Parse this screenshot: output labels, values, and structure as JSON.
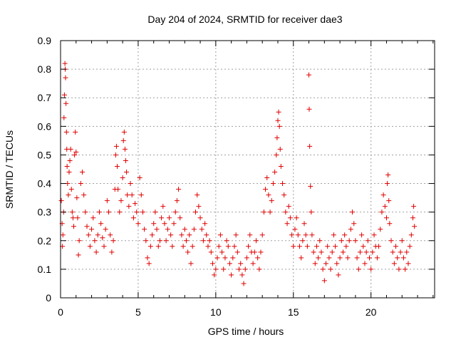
{
  "chart_data": {
    "type": "scatter",
    "title": "Day 204 of 2024, SRMTID for receiver dae3",
    "xlabel": "GPS time / hours",
    "ylabel": "SRMTID / TECUs",
    "xlim": [
      0,
      24.1
    ],
    "ylim": [
      0,
      0.9
    ],
    "x_ticks": [
      0,
      5,
      10,
      15,
      20
    ],
    "y_ticks": [
      0,
      0.1,
      0.2,
      0.3,
      0.4,
      0.5,
      0.6,
      0.7,
      0.8,
      0.9
    ],
    "x_tick_labels": [
      "0",
      "5",
      "10",
      "15",
      "20"
    ],
    "y_tick_labels": [
      "0",
      "0.1",
      "0.2",
      "0.3",
      "0.4",
      "0.5",
      "0.6",
      "0.7",
      "0.8",
      "0.9"
    ],
    "grid": true,
    "marker": "+",
    "marker_color": "#e00000",
    "series": [
      {
        "name": "SRMTID",
        "points": [
          [
            0.05,
            0.34
          ],
          [
            0.1,
            0.26
          ],
          [
            0.12,
            0.18
          ],
          [
            0.15,
            0.22
          ],
          [
            0.2,
            0.3
          ],
          [
            0.22,
            0.63
          ],
          [
            0.25,
            0.71
          ],
          [
            0.28,
            0.82
          ],
          [
            0.3,
            0.8
          ],
          [
            0.32,
            0.77
          ],
          [
            0.35,
            0.68
          ],
          [
            0.38,
            0.58
          ],
          [
            0.4,
            0.52
          ],
          [
            0.42,
            0.46
          ],
          [
            0.45,
            0.4
          ],
          [
            0.5,
            0.36
          ],
          [
            0.55,
            0.44
          ],
          [
            0.6,
            0.48
          ],
          [
            0.65,
            0.52
          ],
          [
            0.7,
            0.38
          ],
          [
            0.75,
            0.3
          ],
          [
            0.8,
            0.28
          ],
          [
            0.85,
            0.25
          ],
          [
            0.9,
            0.5
          ],
          [
            0.95,
            0.58
          ],
          [
            1.0,
            0.51
          ],
          [
            1.05,
            0.35
          ],
          [
            1.1,
            0.28
          ],
          [
            1.15,
            0.15
          ],
          [
            1.2,
            0.2
          ],
          [
            1.3,
            0.4
          ],
          [
            1.4,
            0.44
          ],
          [
            1.5,
            0.36
          ],
          [
            1.6,
            0.3
          ],
          [
            1.7,
            0.25
          ],
          [
            1.8,
            0.22
          ],
          [
            1.9,
            0.18
          ],
          [
            2.0,
            0.24
          ],
          [
            2.1,
            0.28
          ],
          [
            2.2,
            0.2
          ],
          [
            2.3,
            0.16
          ],
          [
            2.4,
            0.22
          ],
          [
            2.5,
            0.3
          ],
          [
            2.6,
            0.26
          ],
          [
            2.7,
            0.21
          ],
          [
            2.8,
            0.18
          ],
          [
            2.9,
            0.24
          ],
          [
            3.0,
            0.34
          ],
          [
            3.1,
            0.3
          ],
          [
            3.2,
            0.22
          ],
          [
            3.3,
            0.16
          ],
          [
            3.4,
            0.2
          ],
          [
            3.5,
            0.38
          ],
          [
            3.55,
            0.5
          ],
          [
            3.6,
            0.53
          ],
          [
            3.65,
            0.46
          ],
          [
            3.7,
            0.38
          ],
          [
            3.8,
            0.3
          ],
          [
            3.9,
            0.34
          ],
          [
            4.0,
            0.42
          ],
          [
            4.05,
            0.55
          ],
          [
            4.1,
            0.58
          ],
          [
            4.15,
            0.52
          ],
          [
            4.2,
            0.48
          ],
          [
            4.25,
            0.44
          ],
          [
            4.3,
            0.36
          ],
          [
            4.4,
            0.32
          ],
          [
            4.5,
            0.4
          ],
          [
            4.6,
            0.36
          ],
          [
            4.7,
            0.28
          ],
          [
            4.8,
            0.33
          ],
          [
            4.9,
            0.3
          ],
          [
            5.0,
            0.26
          ],
          [
            5.1,
            0.42
          ],
          [
            5.2,
            0.36
          ],
          [
            5.3,
            0.3
          ],
          [
            5.4,
            0.24
          ],
          [
            5.5,
            0.2
          ],
          [
            5.6,
            0.14
          ],
          [
            5.7,
            0.12
          ],
          [
            5.8,
            0.18
          ],
          [
            5.9,
            0.22
          ],
          [
            6.0,
            0.26
          ],
          [
            6.1,
            0.3
          ],
          [
            6.2,
            0.24
          ],
          [
            6.3,
            0.18
          ],
          [
            6.4,
            0.2
          ],
          [
            6.5,
            0.28
          ],
          [
            6.6,
            0.32
          ],
          [
            6.7,
            0.26
          ],
          [
            6.8,
            0.2
          ],
          [
            6.9,
            0.24
          ],
          [
            7.0,
            0.28
          ],
          [
            7.1,
            0.22
          ],
          [
            7.2,
            0.18
          ],
          [
            7.3,
            0.26
          ],
          [
            7.4,
            0.3
          ],
          [
            7.5,
            0.34
          ],
          [
            7.6,
            0.38
          ],
          [
            7.7,
            0.28
          ],
          [
            7.8,
            0.22
          ],
          [
            7.9,
            0.18
          ],
          [
            8.0,
            0.24
          ],
          [
            8.1,
            0.2
          ],
          [
            8.2,
            0.16
          ],
          [
            8.3,
            0.22
          ],
          [
            8.4,
            0.12
          ],
          [
            8.5,
            0.18
          ],
          [
            8.6,
            0.24
          ],
          [
            8.7,
            0.3
          ],
          [
            8.8,
            0.36
          ],
          [
            8.9,
            0.32
          ],
          [
            9.0,
            0.28
          ],
          [
            9.1,
            0.24
          ],
          [
            9.2,
            0.2
          ],
          [
            9.3,
            0.26
          ],
          [
            9.4,
            0.22
          ],
          [
            9.5,
            0.18
          ],
          [
            9.6,
            0.2
          ],
          [
            9.7,
            0.16
          ],
          [
            9.8,
            0.12
          ],
          [
            9.9,
            0.08
          ],
          [
            10.0,
            0.1
          ],
          [
            10.1,
            0.14
          ],
          [
            10.2,
            0.18
          ],
          [
            10.3,
            0.22
          ],
          [
            10.4,
            0.16
          ],
          [
            10.5,
            0.1
          ],
          [
            10.6,
            0.14
          ],
          [
            10.7,
            0.2
          ],
          [
            10.8,
            0.18
          ],
          [
            10.9,
            0.12
          ],
          [
            11.0,
            0.08
          ],
          [
            11.1,
            0.14
          ],
          [
            11.2,
            0.18
          ],
          [
            11.3,
            0.22
          ],
          [
            11.4,
            0.16
          ],
          [
            11.5,
            0.1
          ],
          [
            11.6,
            0.12
          ],
          [
            11.7,
            0.08
          ],
          [
            11.8,
            0.05
          ],
          [
            11.9,
            0.1
          ],
          [
            12.0,
            0.14
          ],
          [
            12.1,
            0.18
          ],
          [
            12.2,
            0.22
          ],
          [
            12.3,
            0.16
          ],
          [
            12.4,
            0.12
          ],
          [
            12.5,
            0.16
          ],
          [
            12.6,
            0.2
          ],
          [
            12.7,
            0.14
          ],
          [
            12.8,
            0.1
          ],
          [
            12.9,
            0.16
          ],
          [
            13.0,
            0.22
          ],
          [
            13.1,
            0.3
          ],
          [
            13.2,
            0.38
          ],
          [
            13.3,
            0.42
          ],
          [
            13.4,
            0.36
          ],
          [
            13.5,
            0.3
          ],
          [
            13.6,
            0.34
          ],
          [
            13.7,
            0.4
          ],
          [
            13.8,
            0.44
          ],
          [
            13.9,
            0.5
          ],
          [
            13.95,
            0.56
          ],
          [
            14.0,
            0.62
          ],
          [
            14.05,
            0.65
          ],
          [
            14.1,
            0.6
          ],
          [
            14.15,
            0.52
          ],
          [
            14.2,
            0.46
          ],
          [
            14.3,
            0.4
          ],
          [
            14.4,
            0.36
          ],
          [
            14.5,
            0.3
          ],
          [
            14.6,
            0.26
          ],
          [
            14.7,
            0.32
          ],
          [
            14.8,
            0.28
          ],
          [
            14.9,
            0.22
          ],
          [
            15.0,
            0.18
          ],
          [
            15.1,
            0.24
          ],
          [
            15.2,
            0.28
          ],
          [
            15.3,
            0.22
          ],
          [
            15.4,
            0.18
          ],
          [
            15.5,
            0.14
          ],
          [
            15.6,
            0.2
          ],
          [
            15.7,
            0.26
          ],
          [
            15.8,
            0.22
          ],
          [
            15.9,
            0.18
          ],
          [
            16.0,
            0.78
          ],
          [
            16.02,
            0.66
          ],
          [
            16.05,
            0.53
          ],
          [
            16.1,
            0.39
          ],
          [
            16.15,
            0.3
          ],
          [
            16.2,
            0.22
          ],
          [
            16.3,
            0.16
          ],
          [
            16.4,
            0.12
          ],
          [
            16.5,
            0.18
          ],
          [
            16.6,
            0.14
          ],
          [
            16.7,
            0.2
          ],
          [
            16.8,
            0.16
          ],
          [
            16.9,
            0.1
          ],
          [
            17.0,
            0.06
          ],
          [
            17.1,
            0.12
          ],
          [
            17.2,
            0.18
          ],
          [
            17.3,
            0.14
          ],
          [
            17.4,
            0.1
          ],
          [
            17.5,
            0.16
          ],
          [
            17.6,
            0.22
          ],
          [
            17.7,
            0.18
          ],
          [
            17.8,
            0.12
          ],
          [
            17.9,
            0.08
          ],
          [
            18.0,
            0.14
          ],
          [
            18.1,
            0.2
          ],
          [
            18.2,
            0.16
          ],
          [
            18.3,
            0.22
          ],
          [
            18.4,
            0.18
          ],
          [
            18.5,
            0.14
          ],
          [
            18.6,
            0.2
          ],
          [
            18.7,
            0.24
          ],
          [
            18.8,
            0.3
          ],
          [
            18.9,
            0.26
          ],
          [
            19.0,
            0.2
          ],
          [
            19.1,
            0.14
          ],
          [
            19.2,
            0.1
          ],
          [
            19.3,
            0.16
          ],
          [
            19.4,
            0.22
          ],
          [
            19.5,
            0.18
          ],
          [
            19.6,
            0.12
          ],
          [
            19.7,
            0.16
          ],
          [
            19.8,
            0.2
          ],
          [
            19.9,
            0.14
          ],
          [
            20.0,
            0.1
          ],
          [
            20.1,
            0.16
          ],
          [
            20.2,
            0.22
          ],
          [
            20.3,
            0.18
          ],
          [
            20.4,
            0.14
          ],
          [
            20.5,
            0.18
          ],
          [
            20.6,
            0.24
          ],
          [
            20.7,
            0.3
          ],
          [
            20.8,
            0.36
          ],
          [
            20.9,
            0.32
          ],
          [
            21.0,
            0.28
          ],
          [
            21.05,
            0.4
          ],
          [
            21.1,
            0.43
          ],
          [
            21.15,
            0.34
          ],
          [
            21.2,
            0.26
          ],
          [
            21.3,
            0.2
          ],
          [
            21.4,
            0.16
          ],
          [
            21.5,
            0.12
          ],
          [
            21.6,
            0.18
          ],
          [
            21.7,
            0.14
          ],
          [
            21.8,
            0.1
          ],
          [
            21.9,
            0.16
          ],
          [
            22.0,
            0.2
          ],
          [
            22.1,
            0.14
          ],
          [
            22.2,
            0.1
          ],
          [
            22.3,
            0.16
          ],
          [
            22.4,
            0.12
          ],
          [
            22.5,
            0.18
          ],
          [
            22.6,
            0.22
          ],
          [
            22.7,
            0.28
          ],
          [
            22.75,
            0.32
          ],
          [
            22.8,
            0.25
          ]
        ]
      }
    ]
  }
}
